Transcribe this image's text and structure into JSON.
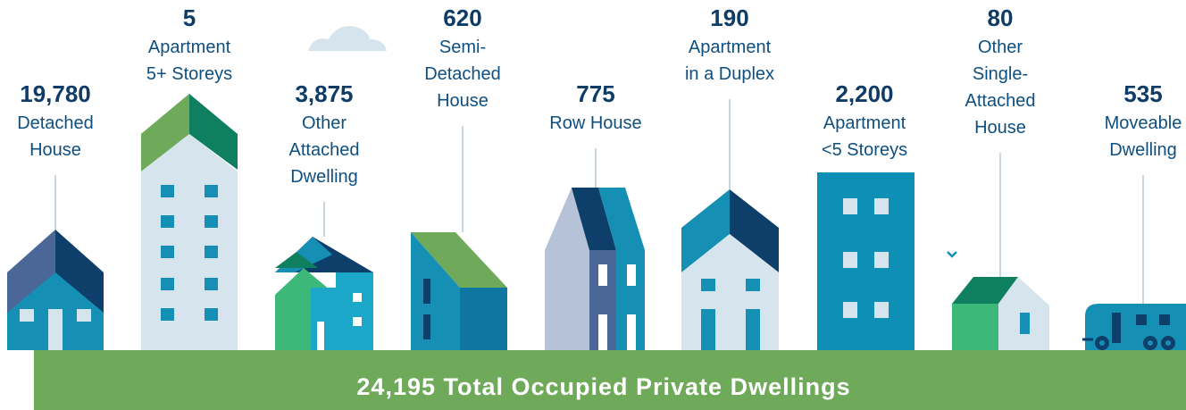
{
  "items": [
    {
      "value": "19,780",
      "label": [
        "Detached",
        "House"
      ]
    },
    {
      "value": "5",
      "label": [
        "Apartment",
        "5+ Storeys"
      ]
    },
    {
      "value": "3,875",
      "label": [
        "Other",
        "Attached",
        "Dwelling"
      ]
    },
    {
      "value": "620",
      "label": [
        "Semi-",
        "Detached",
        "House"
      ]
    },
    {
      "value": "775",
      "label": [
        "Row House"
      ]
    },
    {
      "value": "190",
      "label": [
        "Apartment",
        "in a Duplex"
      ]
    },
    {
      "value": "2,200",
      "label": [
        "Apartment",
        "<5 Storeys"
      ]
    },
    {
      "value": "80",
      "label": [
        "Other",
        "Single-",
        "Attached",
        "House"
      ]
    },
    {
      "value": "535",
      "label": [
        "Moveable",
        "Dwelling"
      ]
    }
  ],
  "total": "24,195 Total Occupied Private Dwellings"
}
